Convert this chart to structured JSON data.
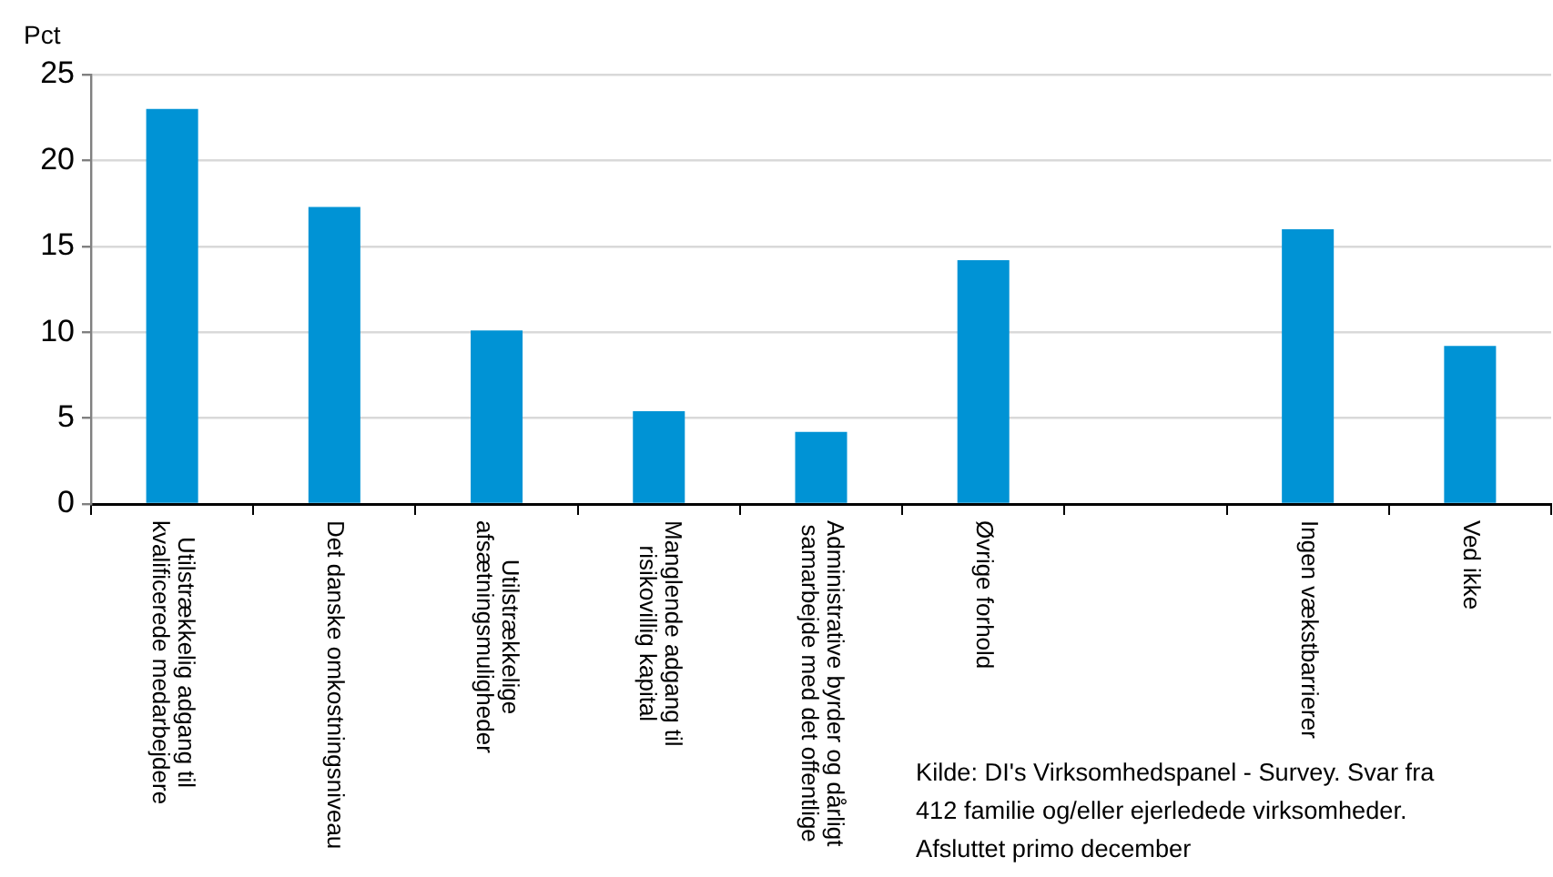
{
  "chart_data": {
    "type": "bar",
    "ylabel": "Pct",
    "categories": [
      "Utilstrækkelig adgang til kvalificerede medarbejdere",
      "Det danske omkostningsniveau",
      "Utilstrækkelige afsætningsmuligheder",
      "Manglende adgang til risikovillig kapital",
      "Administrative byrder og dårligt samarbejde med det offentlige",
      "Øvrige forhold",
      null,
      "Ingen vækstbarrierer",
      "Ved ikke"
    ],
    "values": [
      23.0,
      17.3,
      10.1,
      5.4,
      4.2,
      14.2,
      null,
      16.0,
      9.2
    ],
    "color": "#0093d5",
    "ylim": [
      0,
      25
    ],
    "yticks": [
      0,
      5,
      10,
      15,
      20,
      25
    ],
    "grid": "y",
    "annotations": [
      "Kilde: DI's Virksomhedspanel - Survey. Svar fra 412 familie og/eller ejerledede virksomheder. Afsluttet primo december"
    ]
  }
}
